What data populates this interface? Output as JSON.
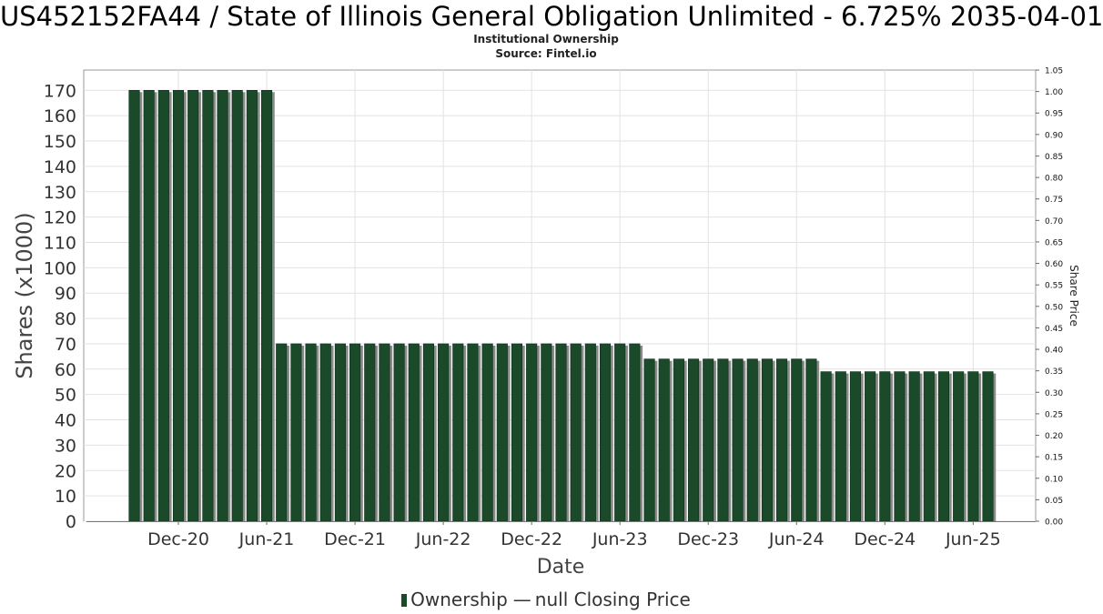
{
  "chart_data": {
    "type": "bar",
    "title": "US452152FA44 / State of Illinois General Obligation Unlimited - 6.725% 2035-04-01",
    "subtitle_lines": [
      "Institutional Ownership",
      "Source: Fintel.io"
    ],
    "xlabel": "Date",
    "ylabel": "Shares (x1000)",
    "y2label": "Share Price",
    "ylim": [
      0,
      178
    ],
    "y2lim": [
      0,
      1.05
    ],
    "yticks": [
      "0",
      "10",
      "20",
      "30",
      "40",
      "50",
      "60",
      "70",
      "80",
      "90",
      "100",
      "110",
      "120",
      "130",
      "140",
      "150",
      "160",
      "170"
    ],
    "y2ticks": [
      "0.00",
      "0.05",
      "0.10",
      "0.15",
      "0.20",
      "0.25",
      "0.30",
      "0.35",
      "0.40",
      "0.45",
      "0.50",
      "0.55",
      "0.60",
      "0.65",
      "0.70",
      "0.75",
      "0.80",
      "0.85",
      "0.90",
      "0.95",
      "1.00",
      "1.05"
    ],
    "xticks": [
      "Dec-20",
      "Jun-21",
      "Dec-21",
      "Jun-22",
      "Dec-22",
      "Jun-23",
      "Dec-23",
      "Jun-24",
      "Dec-24",
      "Jun-25"
    ],
    "grid": true,
    "legend_position": "bottom",
    "series": [
      {
        "name": "Ownership",
        "color": "#1a4a2a",
        "values": [
          170,
          170,
          170,
          170,
          170,
          170,
          170,
          170,
          170,
          170,
          70,
          70,
          70,
          70,
          70,
          70,
          70,
          70,
          70,
          70,
          70,
          70,
          70,
          70,
          70,
          70,
          70,
          70,
          70,
          70,
          70,
          70,
          70,
          70,
          70,
          64,
          64,
          64,
          64,
          64,
          64,
          64,
          64,
          64,
          64,
          64,
          64,
          59,
          59,
          59,
          59,
          59,
          59,
          59,
          59,
          59,
          59,
          59,
          59
        ]
      }
    ],
    "legend": {
      "ownership_label": "Ownership",
      "line_glyph": "—",
      "closing_price_label": "null Closing Price"
    }
  }
}
